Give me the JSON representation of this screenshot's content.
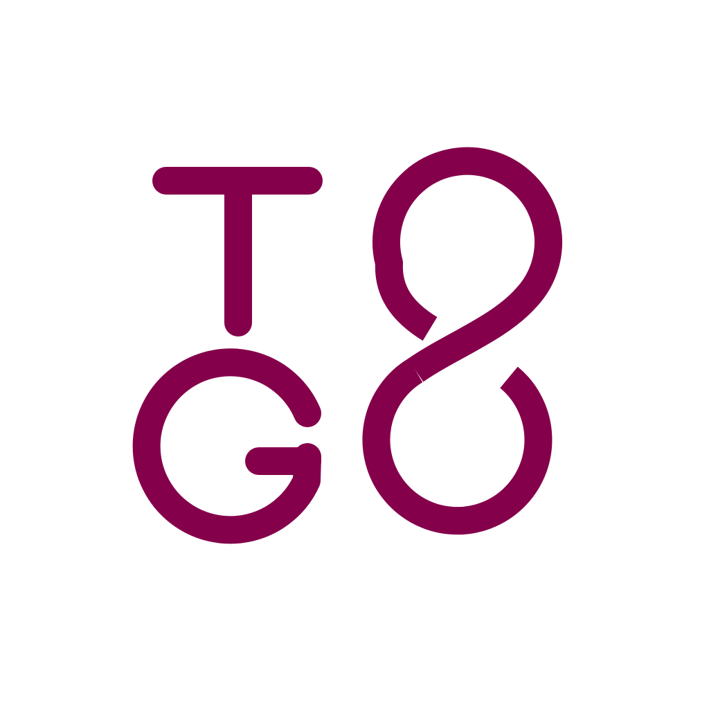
{
  "logo": {
    "lettering": "TG8",
    "color": "#85004B",
    "background": "#FFFFFF"
  }
}
